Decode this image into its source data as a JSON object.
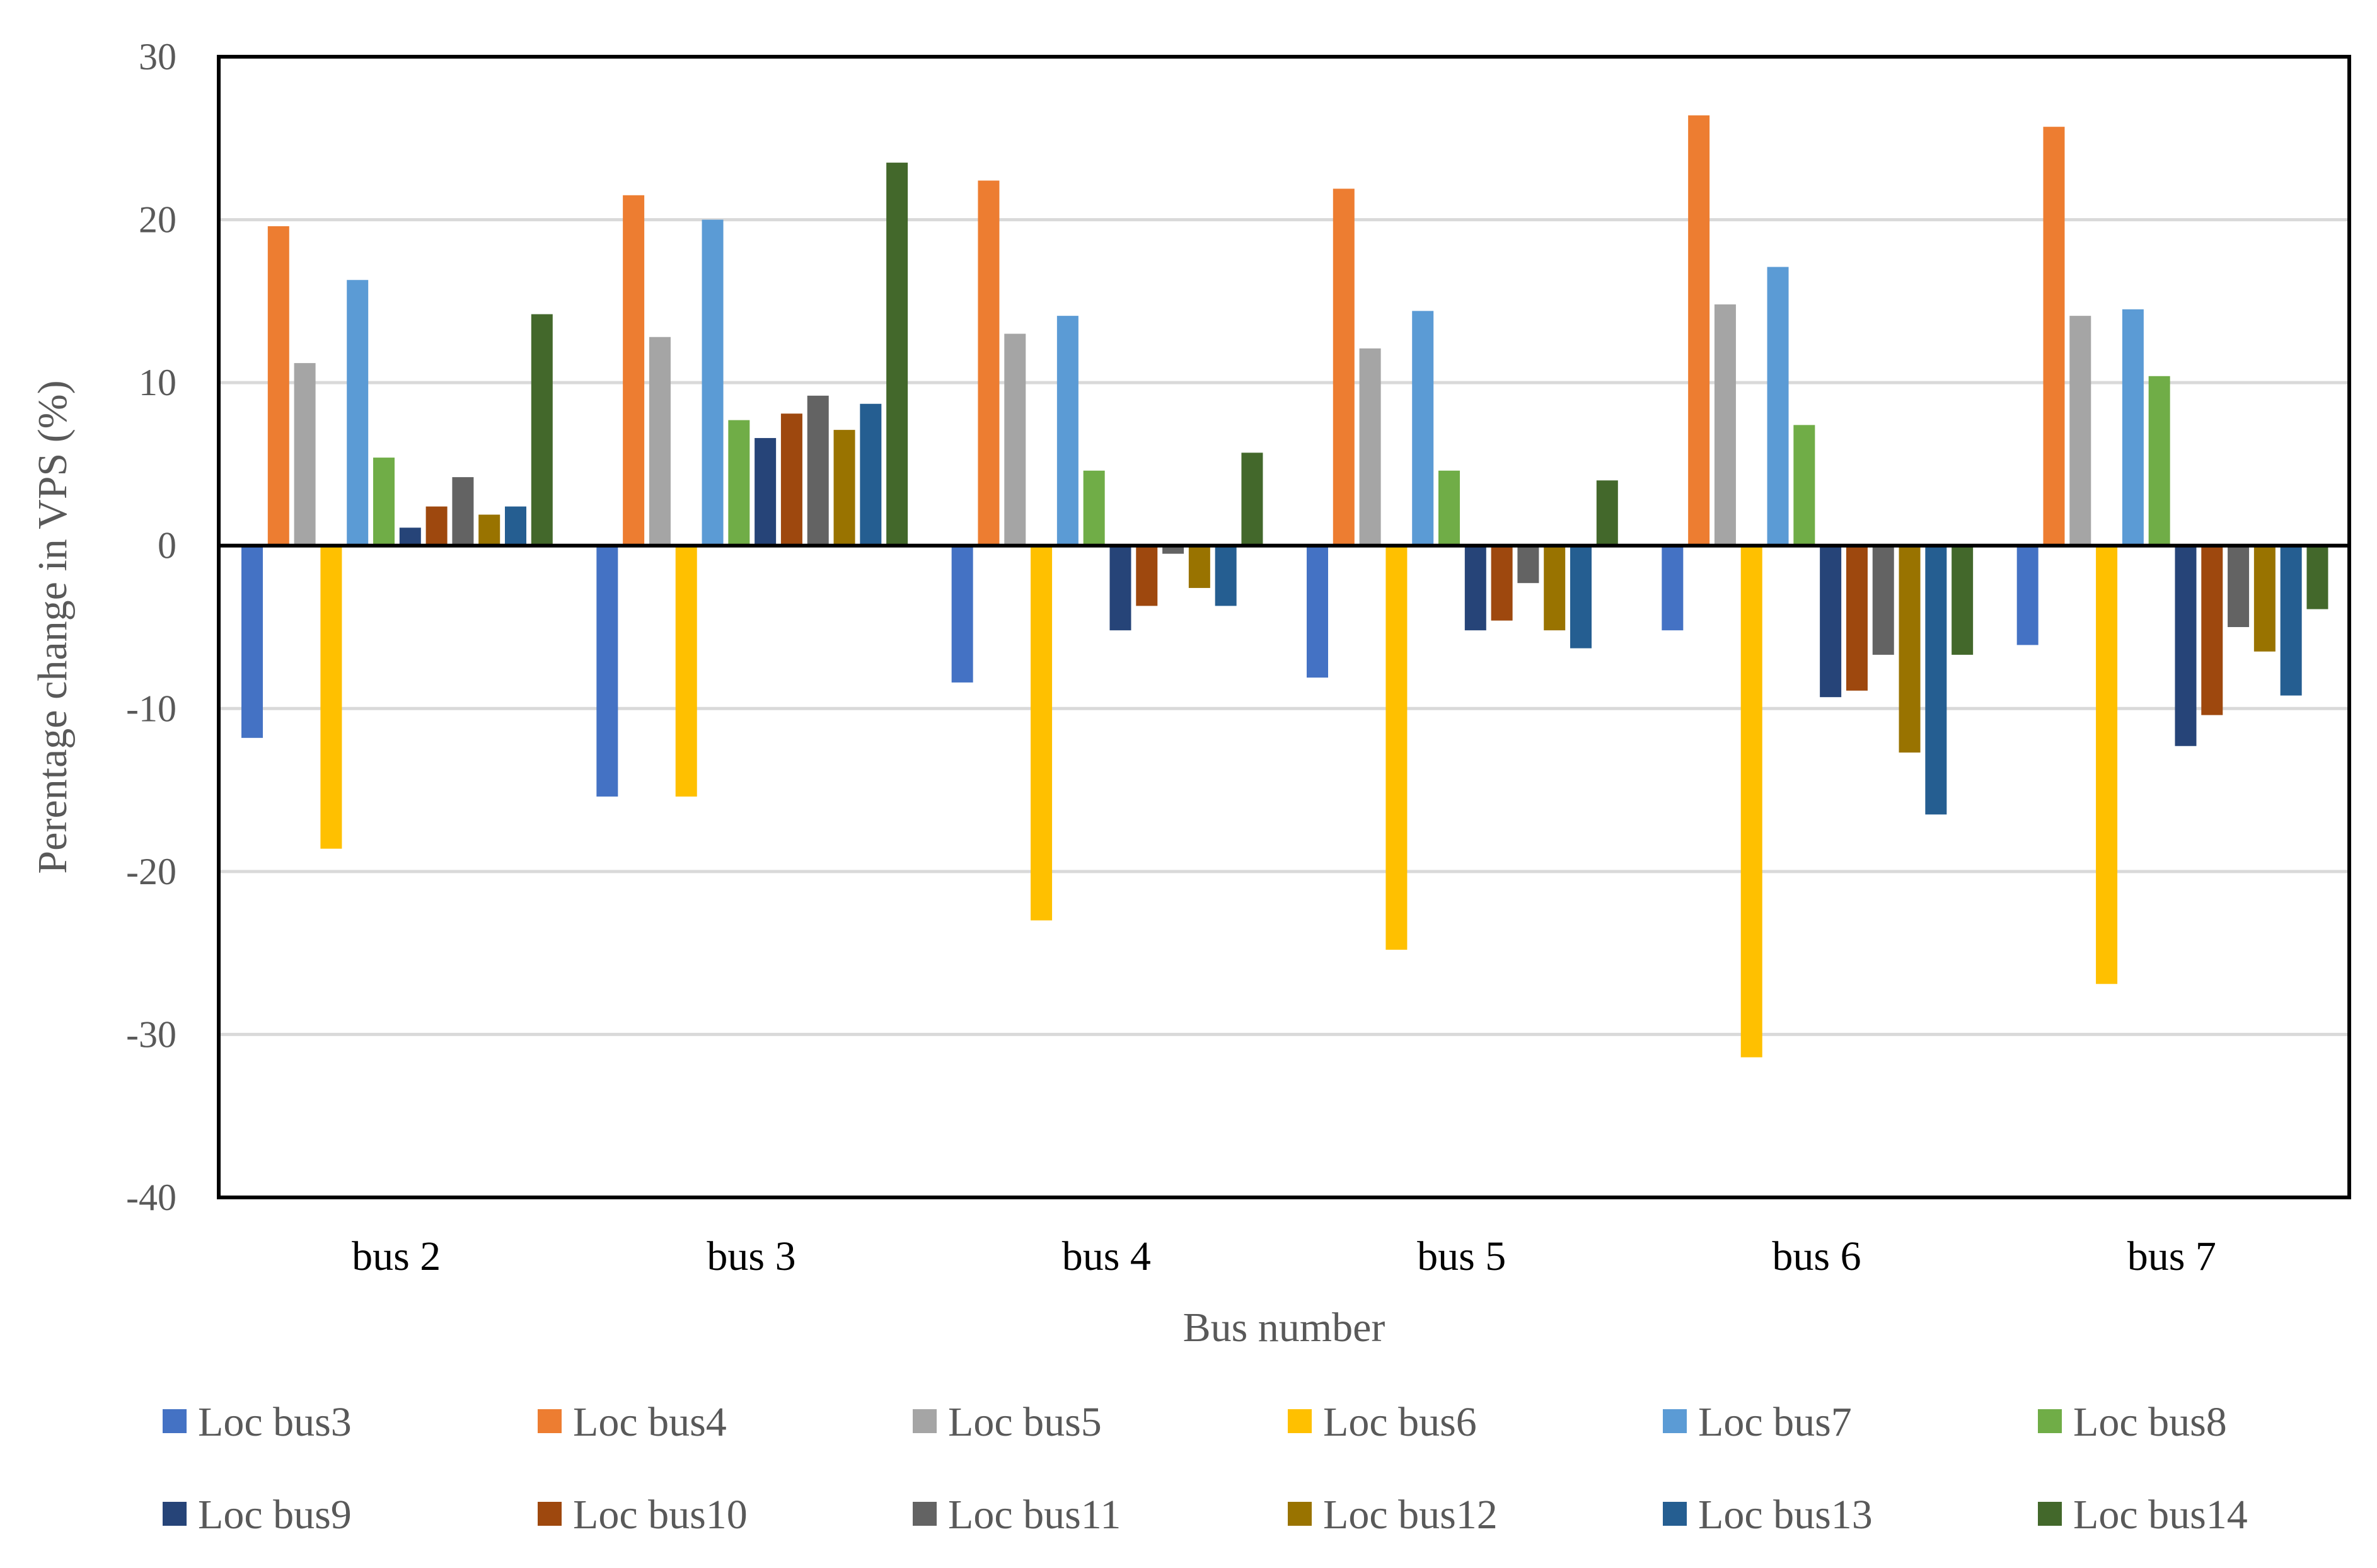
{
  "chart_data": {
    "type": "bar",
    "title": "",
    "xlabel": "Bus number",
    "ylabel": "Perentage change in VPS (%)",
    "ylim": [
      -40,
      30
    ],
    "yticks": [
      30,
      20,
      10,
      0,
      -10,
      -20,
      -30,
      -40
    ],
    "grid": true,
    "legend_position": "bottom",
    "categories": [
      "bus 2",
      "bus 3",
      "bus 4",
      "bus 5",
      "bus 6",
      "bus 7"
    ],
    "series": [
      {
        "name": "Loc bus3",
        "color": "#4472C4",
        "values": [
          -11.8,
          -15.4,
          -8.4,
          -8.1,
          -5.2,
          -6.1
        ]
      },
      {
        "name": "Loc bus4",
        "color": "#ED7D31",
        "values": [
          19.6,
          21.5,
          22.4,
          21.9,
          26.4,
          25.7
        ]
      },
      {
        "name": "Loc bus5",
        "color": "#A5A5A5",
        "values": [
          11.2,
          12.8,
          13.0,
          12.1,
          14.8,
          14.1
        ]
      },
      {
        "name": "Loc bus6",
        "color": "#FFC000",
        "values": [
          -18.6,
          -15.4,
          -23.0,
          -24.8,
          -31.4,
          -26.9
        ]
      },
      {
        "name": "Loc bus7",
        "color": "#5B9BD5",
        "values": [
          16.3,
          20.0,
          14.1,
          14.4,
          17.1,
          14.5
        ]
      },
      {
        "name": "Loc bus8",
        "color": "#70AD47",
        "values": [
          5.4,
          7.7,
          4.6,
          4.6,
          7.4,
          10.4
        ]
      },
      {
        "name": "Loc bus9",
        "color": "#264478",
        "values": [
          1.1,
          6.6,
          -5.2,
          -5.2,
          -9.3,
          -12.3
        ]
      },
      {
        "name": "Loc bus10",
        "color": "#9E480E",
        "values": [
          2.4,
          8.1,
          -3.7,
          -4.6,
          -8.9,
          -10.4
        ]
      },
      {
        "name": "Loc bus11",
        "color": "#636363",
        "values": [
          4.2,
          9.2,
          -0.5,
          -2.3,
          -6.7,
          -5.0
        ]
      },
      {
        "name": "Loc bus12",
        "color": "#997300",
        "values": [
          1.9,
          7.1,
          -2.6,
          -5.2,
          -12.7,
          -6.5
        ]
      },
      {
        "name": "Loc bus13",
        "color": "#255E91",
        "values": [
          2.4,
          8.7,
          -3.7,
          -6.3,
          -16.5,
          -9.2
        ]
      },
      {
        "name": "Loc bus14",
        "color": "#43682B",
        "values": [
          14.2,
          23.5,
          5.7,
          4.0,
          -6.7,
          -3.9
        ]
      }
    ]
  }
}
